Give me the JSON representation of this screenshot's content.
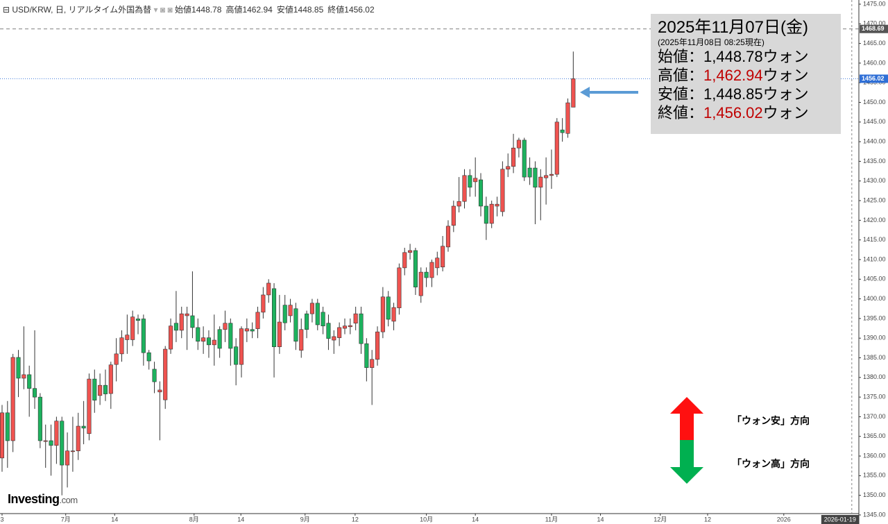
{
  "header": {
    "symbol": "USD/KRW, 日, リアルタイム外国為替",
    "ohlc": [
      {
        "label": "始値",
        "value": 1448.78
      },
      {
        "label": "高値",
        "value": 1462.94
      },
      {
        "label": "安値",
        "value": 1448.85
      },
      {
        "label": "終値",
        "value": 1456.02
      }
    ]
  },
  "annotation": {
    "date": "2025年11月07日(金)",
    "asof": "(2025年11月08日 08:25現在)",
    "lines": [
      {
        "label": "始値：",
        "value": "1,448.78",
        "unit": "ウォン",
        "color": "#000000"
      },
      {
        "label": "高値：",
        "value": "1,462.94",
        "unit": "ウォン",
        "color": "#c00000"
      },
      {
        "label": "安値：",
        "value": "1,448.85",
        "unit": "ウォン",
        "color": "#000000"
      },
      {
        "label": "終値：",
        "value": "1,456.02",
        "unit": "ウォン",
        "color": "#c00000"
      }
    ],
    "up_label": "「ウォン安」方向",
    "down_label": "「ウォン高」方向"
  },
  "logo": {
    "brand": "Investing",
    "suffix": ".com"
  },
  "chart_data": {
    "type": "candlestick",
    "up_color": "#ef5350",
    "down_color": "#1db25e",
    "grid": false,
    "xlim": [
      -0.38,
      157.5
    ],
    "ylim": [
      1345.35,
      1476.06
    ],
    "xticks": [
      {
        "value": 0,
        "label": "3"
      },
      {
        "value": 11.7,
        "label": "7月"
      },
      {
        "value": 20.7,
        "label": "14"
      },
      {
        "value": 35.3,
        "label": "8月"
      },
      {
        "value": 43.9,
        "label": "14"
      },
      {
        "value": 55.7,
        "label": "9月"
      },
      {
        "value": 64.9,
        "label": "12"
      },
      {
        "value": 78,
        "label": "10月"
      },
      {
        "value": 87,
        "label": "14"
      },
      {
        "value": 101,
        "label": "11月"
      },
      {
        "value": 110,
        "label": "14"
      },
      {
        "value": 121,
        "label": "12月"
      },
      {
        "value": 129.7,
        "label": "12"
      },
      {
        "value": 143.7,
        "label": "2026"
      }
    ],
    "crosshair_x": {
      "value": 156.2,
      "label": "2026-01-19"
    },
    "yticks": [
      {
        "value": 1345,
        "label": "1345.00"
      },
      {
        "value": 1350,
        "label": "1350.00"
      },
      {
        "value": 1355,
        "label": "1355.00"
      },
      {
        "value": 1360,
        "label": "1360.00"
      },
      {
        "value": 1365,
        "label": "1365.00"
      },
      {
        "value": 1370,
        "label": "1370.00"
      },
      {
        "value": 1375,
        "label": "1375.00"
      },
      {
        "value": 1380,
        "label": "1380.00"
      },
      {
        "value": 1385,
        "label": "1385.00"
      },
      {
        "value": 1390,
        "label": "1390.00"
      },
      {
        "value": 1395,
        "label": "1395.00"
      },
      {
        "value": 1400,
        "label": "1400.00"
      },
      {
        "value": 1405,
        "label": "1405.00"
      },
      {
        "value": 1410,
        "label": "1410.00"
      },
      {
        "value": 1415,
        "label": "1415.00"
      },
      {
        "value": 1420,
        "label": "1420.00"
      },
      {
        "value": 1425,
        "label": "1425.00"
      },
      {
        "value": 1430,
        "label": "1430.00"
      },
      {
        "value": 1435,
        "label": "1435.00"
      },
      {
        "value": 1440,
        "label": "1440.00"
      },
      {
        "value": 1445,
        "label": "1445.00"
      },
      {
        "value": 1450,
        "label": "1450.00"
      },
      {
        "value": 1455,
        "label": "1455.00"
      },
      {
        "value": 1460,
        "label": "1460.00"
      },
      {
        "value": 1465,
        "label": "1465.00"
      },
      {
        "value": 1470,
        "label": "1470.00"
      },
      {
        "value": 1475,
        "label": "1475.00"
      }
    ],
    "reference_lines": [
      {
        "value": 1468.69,
        "color": "#555555",
        "style": "dashed"
      },
      {
        "value": 1456.02,
        "color": "#2f6fd6",
        "style": "dotted"
      }
    ],
    "open": [
      1359.5,
      1371.0,
      1363.9,
      1385.1,
      1379.8,
      1380.7,
      1377.2,
      1375.0,
      1363.7,
      1363.9,
      1362.7,
      1368.9,
      1357.7,
      1361.1,
      1361.3,
      1367.6,
      1365.7,
      1379.6,
      1375.4,
      1378.0,
      1375.9,
      1383.3,
      1386.0,
      1389.6,
      1389.6,
      1394.9,
      1394.9,
      1386.3,
      1382.1,
      1376.3,
      1374.3,
      1387.2,
      1393.8,
      1392.0,
      1395.7,
      1395.7,
      1392.7,
      1389.2,
      1390.1,
      1388.3,
      1392.2,
      1392.2,
      1393.8,
      1387.8,
      1383.3,
      1391.8,
      1392.2,
      1392.4,
      1396.6,
      1401.0,
      1402.6,
      1387.8,
      1398.4,
      1395.7,
      1397.5,
      1386.9,
      1396.2,
      1396.2,
      1398.9,
      1396.6,
      1393.8,
      1389.5,
      1390.1,
      1392.5,
      1392.9,
      1393.8,
      1396.2,
      1388.6,
      1382.5,
      1384.6,
      1391.6,
      1400.5,
      1394.3,
      1397.7,
      1407.9,
      1411.8,
      1412.3,
      1400.8,
      1406.8,
      1405.4,
      1407.9,
      1408.1,
      1413.2,
      1418.7,
      1423.6,
      1424.8,
      1431.4,
      1429.8,
      1430.3,
      1423.6,
      1419.2,
      1423.6,
      1422.2,
      1433.0,
      1433.7,
      1438.4,
      1440.4,
      1433.3,
      1433.3,
      1428.4,
      1430.8,
      1431.4,
      1431.7,
      1443.0,
      1442.1,
      1448.78
    ],
    "high": [
      1373,
      1374,
      1386,
      1387,
      1393,
      1383,
      1392,
      1376,
      1368,
      1368,
      1370,
      1370,
      1366,
      1370,
      1371,
      1374,
      1381,
      1382,
      1381,
      1382,
      1384,
      1390,
      1392,
      1396,
      1397,
      1396,
      1396,
      1387,
      1384,
      1379,
      1388,
      1395,
      1402,
      1398,
      1398,
      1407,
      1395,
      1393,
      1392,
      1396,
      1393,
      1397,
      1395,
      1390,
      1393,
      1395,
      1394,
      1398,
      1403,
      1405,
      1404,
      1401,
      1401,
      1400,
      1399,
      1395,
      1397,
      1400,
      1400,
      1398,
      1396,
      1392,
      1394,
      1395,
      1395,
      1398,
      1398,
      1390,
      1387,
      1393,
      1403,
      1402,
      1399,
      1409,
      1413,
      1414,
      1413,
      1408,
      1408,
      1410,
      1412,
      1416,
      1420,
      1425,
      1431,
      1433,
      1433,
      1436,
      1432,
      1426,
      1425,
      1426,
      1435,
      1437,
      1442,
      1441,
      1441,
      1436,
      1435,
      1433,
      1436,
      1438,
      1446,
      1446,
      1451,
      1462.94
    ],
    "low": [
      1356,
      1357,
      1361,
      1375,
      1377,
      1370,
      1372,
      1362,
      1357,
      1355,
      1358,
      1350,
      1352,
      1356,
      1359,
      1363,
      1364,
      1371,
      1373,
      1374,
      1372,
      1379,
      1384,
      1386,
      1388,
      1391,
      1383,
      1382,
      1376,
      1364,
      1372,
      1386,
      1389,
      1390,
      1387,
      1390,
      1387,
      1386,
      1385,
      1383,
      1385,
      1389,
      1383,
      1378,
      1380,
      1389,
      1390,
      1390,
      1395,
      1399,
      1380,
      1386,
      1392,
      1394,
      1387,
      1385,
      1390,
      1394,
      1392,
      1391,
      1387,
      1386,
      1388,
      1391,
      1391,
      1392,
      1386,
      1379,
      1373,
      1383,
      1390,
      1393,
      1392,
      1396,
      1406,
      1410,
      1401,
      1399,
      1403,
      1403,
      1406,
      1407,
      1412,
      1417,
      1422,
      1423,
      1426,
      1426,
      1421,
      1415,
      1418,
      1421,
      1421,
      1431,
      1432,
      1436,
      1430,
      1429,
      1419,
      1420,
      1424,
      1428,
      1431,
      1440,
      1441,
      1448.85
    ],
    "close": [
      1371.0,
      1363.9,
      1385.1,
      1379.8,
      1380.7,
      1377.2,
      1375.0,
      1363.9,
      1363.9,
      1362.7,
      1368.9,
      1357.7,
      1361.3,
      1361.3,
      1367.6,
      1367.1,
      1379.6,
      1374.2,
      1378.0,
      1375.8,
      1383.2,
      1386.0,
      1390.1,
      1390.8,
      1395.4,
      1394.5,
      1386.3,
      1384.2,
      1378.9,
      1376.8,
      1387.2,
      1393.1,
      1392.0,
      1396.2,
      1396.2,
      1392.7,
      1389.2,
      1390.1,
      1388.3,
      1389.5,
      1387.4,
      1393.8,
      1387.4,
      1383.3,
      1392.4,
      1392.4,
      1391.8,
      1396.6,
      1401.0,
      1404.0,
      1387.8,
      1394.1,
      1393.9,
      1398.4,
      1389.2,
      1392.2,
      1392.2,
      1398.9,
      1393.4,
      1393.1,
      1389.9,
      1390.4,
      1392.7,
      1393.1,
      1393.2,
      1396.2,
      1388.6,
      1382.5,
      1384.6,
      1391.6,
      1400.5,
      1394.8,
      1397.8,
      1407.9,
      1411.8,
      1412.3,
      1403.0,
      1406.8,
      1405.4,
      1409.3,
      1410.4,
      1413.4,
      1418.5,
      1423.6,
      1424.8,
      1431.4,
      1428.4,
      1430.7,
      1423.6,
      1419.2,
      1424.1,
      1424.1,
      1433.0,
      1433.7,
      1438.4,
      1440.4,
      1431.0,
      1431.0,
      1428.4,
      1431.0,
      1431.4,
      1431.7,
      1445.0,
      1442.3,
      1449.9,
      1456.02
    ]
  }
}
